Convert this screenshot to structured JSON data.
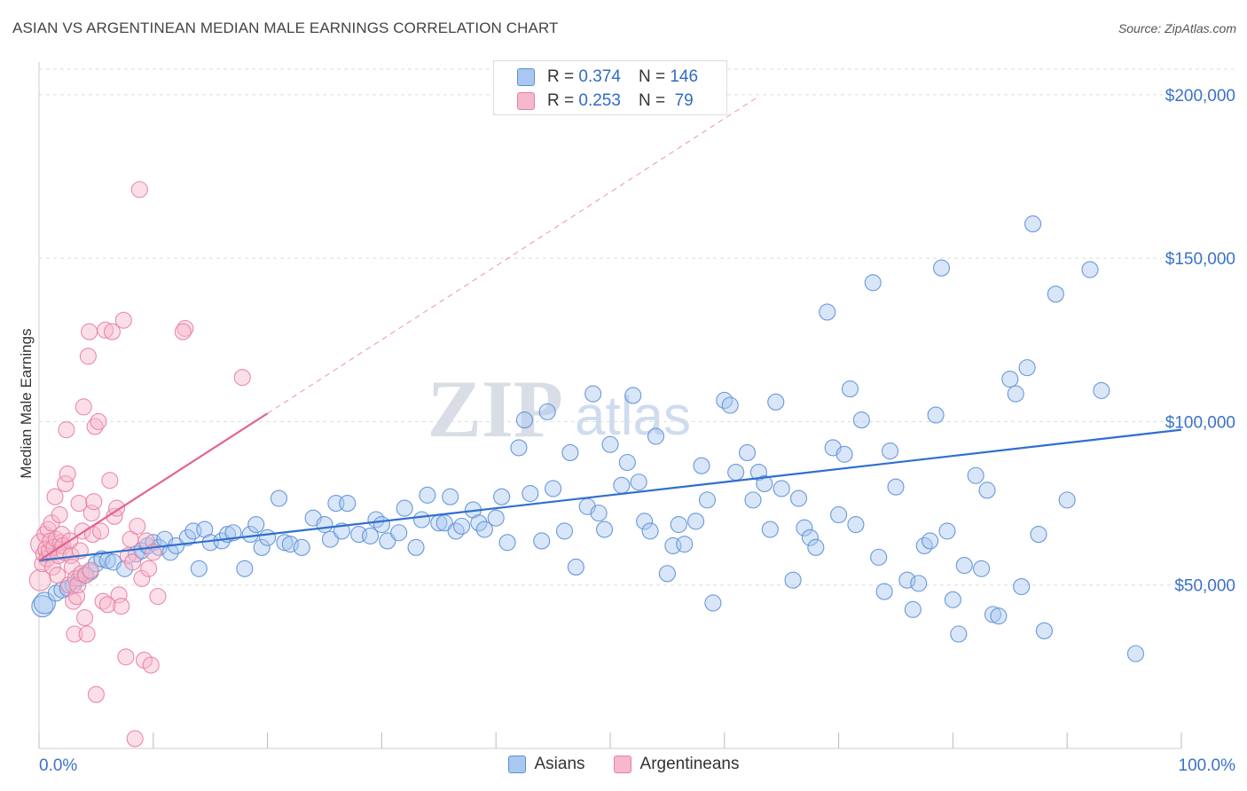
{
  "title": "ASIAN VS ARGENTINEAN MEDIAN MALE EARNINGS CORRELATION CHART",
  "source": "Source: ZipAtlas.com",
  "watermark": {
    "zip": "ZIP",
    "atlas": "atlas"
  },
  "colors": {
    "asian_fill": "#a9c8f0",
    "asian_stroke": "#5b8fd6",
    "asian_line": "#2f6fcf",
    "arg_fill": "#f6b8cb",
    "arg_stroke": "#e77fa1",
    "arg_line": "#e4648f",
    "axis_text": "#3c72c8",
    "grid": "#dddddd"
  },
  "legend_stats": [
    {
      "r_label": "R =",
      "r_value": "0.374",
      "n_label": "N =",
      "n_value": "146"
    },
    {
      "r_label": "R =",
      "r_value": "0.253",
      "n_label": "N =",
      "n_value": " 79"
    }
  ],
  "chart_data": {
    "type": "scatter",
    "title": "ASIAN VS ARGENTINEAN MEDIAN MALE EARNINGS CORRELATION CHART",
    "xlabel": "",
    "ylabel": "Median Male Earnings",
    "xlim": [
      0,
      100
    ],
    "ylim": [
      0,
      210000
    ],
    "x_tick_labels": [
      "0.0%",
      "100.0%"
    ],
    "y_ticks": [
      50000,
      100000,
      150000,
      200000
    ],
    "y_tick_labels": [
      "$50,000",
      "$100,000",
      "$150,000",
      "$200,000"
    ],
    "grid": true,
    "legend_position": "bottom",
    "series": [
      {
        "name": "Asians",
        "r": 0.374,
        "n": 146,
        "trend": {
          "x": [
            0,
            100
          ],
          "y": [
            57500,
            97500
          ],
          "dashed_extension": false
        },
        "points": [
          [
            0.3,
            43500
          ],
          [
            0.5,
            44500
          ],
          [
            1.5,
            47500
          ],
          [
            2,
            48500
          ],
          [
            2.5,
            49000
          ],
          [
            3,
            50000
          ],
          [
            3.5,
            52000
          ],
          [
            4,
            53000
          ],
          [
            4.5,
            54000
          ],
          [
            5,
            56500
          ],
          [
            5.5,
            58000
          ],
          [
            6,
            57500
          ],
          [
            6.5,
            57000
          ],
          [
            7.5,
            55000
          ],
          [
            8.5,
            59500
          ],
          [
            9,
            60500
          ],
          [
            9.5,
            62000
          ],
          [
            10,
            63000
          ],
          [
            10.5,
            61500
          ],
          [
            11,
            64000
          ],
          [
            11.5,
            60000
          ],
          [
            12,
            62000
          ],
          [
            13,
            64500
          ],
          [
            13.5,
            66500
          ],
          [
            14,
            55000
          ],
          [
            14.5,
            67000
          ],
          [
            15,
            63000
          ],
          [
            16,
            63500
          ],
          [
            16.5,
            65500
          ],
          [
            17,
            66000
          ],
          [
            18,
            55000
          ],
          [
            18.5,
            65500
          ],
          [
            19,
            68500
          ],
          [
            19.5,
            61500
          ],
          [
            20,
            64500
          ],
          [
            21,
            76500
          ],
          [
            21.5,
            63000
          ],
          [
            22,
            62500
          ],
          [
            23,
            61500
          ],
          [
            24,
            70500
          ],
          [
            25,
            68500
          ],
          [
            25.5,
            64000
          ],
          [
            26,
            75000
          ],
          [
            26.5,
            66500
          ],
          [
            27,
            75000
          ],
          [
            28,
            65500
          ],
          [
            29,
            65000
          ],
          [
            29.5,
            70000
          ],
          [
            30,
            68500
          ],
          [
            30.5,
            63500
          ],
          [
            31.5,
            66000
          ],
          [
            32,
            73500
          ],
          [
            33,
            61500
          ],
          [
            33.5,
            70000
          ],
          [
            34,
            77500
          ],
          [
            35,
            69000
          ],
          [
            35.5,
            69000
          ],
          [
            36,
            77000
          ],
          [
            36.5,
            66500
          ],
          [
            37,
            68000
          ],
          [
            38,
            73000
          ],
          [
            38.5,
            69000
          ],
          [
            39,
            67000
          ],
          [
            40,
            70500
          ],
          [
            40.5,
            77000
          ],
          [
            41,
            63000
          ],
          [
            42,
            92000
          ],
          [
            42.5,
            100500
          ],
          [
            43,
            78000
          ],
          [
            44,
            63500
          ],
          [
            44.5,
            103000
          ],
          [
            45,
            79500
          ],
          [
            46,
            66500
          ],
          [
            46.5,
            90500
          ],
          [
            47,
            55500
          ],
          [
            48,
            74000
          ],
          [
            48.5,
            108500
          ],
          [
            49,
            72000
          ],
          [
            49.5,
            67000
          ],
          [
            50,
            93000
          ],
          [
            51,
            80500
          ],
          [
            51.5,
            87500
          ],
          [
            52,
            108000
          ],
          [
            52.5,
            81500
          ],
          [
            53,
            69500
          ],
          [
            53.5,
            66500
          ],
          [
            54,
            95500
          ],
          [
            55,
            53500
          ],
          [
            55.5,
            62000
          ],
          [
            56,
            68500
          ],
          [
            56.5,
            62500
          ],
          [
            57.5,
            69500
          ],
          [
            58,
            86500
          ],
          [
            58.5,
            76000
          ],
          [
            59,
            44500
          ],
          [
            60,
            106500
          ],
          [
            60.5,
            105000
          ],
          [
            61,
            84500
          ],
          [
            62,
            90500
          ],
          [
            62.5,
            76000
          ],
          [
            63,
            84500
          ],
          [
            63.5,
            81000
          ],
          [
            64,
            67000
          ],
          [
            64.5,
            106000
          ],
          [
            65,
            79500
          ],
          [
            66,
            51500
          ],
          [
            66.5,
            76500
          ],
          [
            67,
            67500
          ],
          [
            67.5,
            64500
          ],
          [
            68,
            61500
          ],
          [
            69,
            133500
          ],
          [
            69.5,
            92000
          ],
          [
            70,
            71500
          ],
          [
            70.5,
            90000
          ],
          [
            71,
            110000
          ],
          [
            71.5,
            68500
          ],
          [
            72,
            100500
          ],
          [
            73,
            142500
          ],
          [
            73.5,
            58500
          ],
          [
            74,
            48000
          ],
          [
            74.5,
            91000
          ],
          [
            75,
            80000
          ],
          [
            76,
            51500
          ],
          [
            76.5,
            42500
          ],
          [
            77,
            50500
          ],
          [
            77.5,
            62000
          ],
          [
            78,
            63500
          ],
          [
            78.5,
            102000
          ],
          [
            79,
            147000
          ],
          [
            79.5,
            66500
          ],
          [
            80,
            45500
          ],
          [
            80.5,
            35000
          ],
          [
            81,
            56000
          ],
          [
            82,
            83500
          ],
          [
            82.5,
            55000
          ],
          [
            83,
            79000
          ],
          [
            83.5,
            41000
          ],
          [
            84,
            40500
          ],
          [
            85,
            113000
          ],
          [
            85.5,
            108500
          ],
          [
            86,
            49500
          ],
          [
            86.5,
            116500
          ],
          [
            87,
            160500
          ],
          [
            87.5,
            65500
          ],
          [
            88,
            36000
          ],
          [
            89,
            139000
          ],
          [
            90,
            76000
          ],
          [
            92,
            146500
          ],
          [
            93,
            109500
          ],
          [
            96,
            29000
          ]
        ]
      },
      {
        "name": "Argentineans",
        "r": 0.253,
        "n": 79,
        "trend": {
          "x": [
            0,
            20
          ],
          "y": [
            57500,
            102500
          ],
          "dashed_extension": true,
          "dashed_to": [
            63,
            199500
          ]
        },
        "points": [
          [
            0.1,
            51500
          ],
          [
            0.2,
            62500
          ],
          [
            0.3,
            56500
          ],
          [
            0.4,
            59500
          ],
          [
            0.5,
            65500
          ],
          [
            0.6,
            61000
          ],
          [
            0.7,
            58000
          ],
          [
            0.8,
            67000
          ],
          [
            0.9,
            60500
          ],
          [
            1,
            63500
          ],
          [
            1.1,
            69000
          ],
          [
            1.2,
            55500
          ],
          [
            1.3,
            61500
          ],
          [
            1.4,
            77000
          ],
          [
            1.5,
            64000
          ],
          [
            1.6,
            53000
          ],
          [
            1.7,
            59000
          ],
          [
            1.8,
            71500
          ],
          [
            1.9,
            63000
          ],
          [
            2,
            65500
          ],
          [
            2.1,
            62000
          ],
          [
            2.2,
            60000
          ],
          [
            2.3,
            81000
          ],
          [
            2.4,
            97500
          ],
          [
            2.5,
            84000
          ],
          [
            2.6,
            50000
          ],
          [
            2.7,
            63500
          ],
          [
            2.8,
            59000
          ],
          [
            2.9,
            55500
          ],
          [
            3,
            45000
          ],
          [
            3.1,
            35000
          ],
          [
            3.2,
            52000
          ],
          [
            3.3,
            46500
          ],
          [
            3.4,
            50000
          ],
          [
            3.5,
            75000
          ],
          [
            3.6,
            60500
          ],
          [
            3.7,
            53500
          ],
          [
            3.8,
            66500
          ],
          [
            3.9,
            104500
          ],
          [
            4,
            40000
          ],
          [
            4.1,
            53000
          ],
          [
            4.2,
            35000
          ],
          [
            4.3,
            120000
          ],
          [
            4.4,
            127500
          ],
          [
            4.5,
            54500
          ],
          [
            4.6,
            72000
          ],
          [
            4.7,
            65500
          ],
          [
            4.8,
            75500
          ],
          [
            4.9,
            98500
          ],
          [
            5,
            16500
          ],
          [
            5.2,
            100000
          ],
          [
            5.4,
            66500
          ],
          [
            5.6,
            45000
          ],
          [
            5.8,
            128000
          ],
          [
            6,
            44000
          ],
          [
            6.2,
            82000
          ],
          [
            6.4,
            127500
          ],
          [
            6.6,
            71000
          ],
          [
            6.8,
            73500
          ],
          [
            7,
            47000
          ],
          [
            7.2,
            43500
          ],
          [
            7.4,
            131000
          ],
          [
            7.6,
            28000
          ],
          [
            7.8,
            59000
          ],
          [
            8,
            64000
          ],
          [
            8.2,
            57000
          ],
          [
            8.4,
            3000
          ],
          [
            8.6,
            68000
          ],
          [
            8.8,
            171000
          ],
          [
            9,
            52000
          ],
          [
            9.2,
            27000
          ],
          [
            9.4,
            63500
          ],
          [
            9.6,
            55000
          ],
          [
            9.8,
            25500
          ],
          [
            10,
            60000
          ],
          [
            10.4,
            46500
          ],
          [
            12.8,
            128500
          ],
          [
            12.6,
            127500
          ],
          [
            17.8,
            113500
          ]
        ]
      }
    ]
  },
  "bottom_legend": [
    {
      "label": "Asians"
    },
    {
      "label": "Argentineans"
    }
  ]
}
